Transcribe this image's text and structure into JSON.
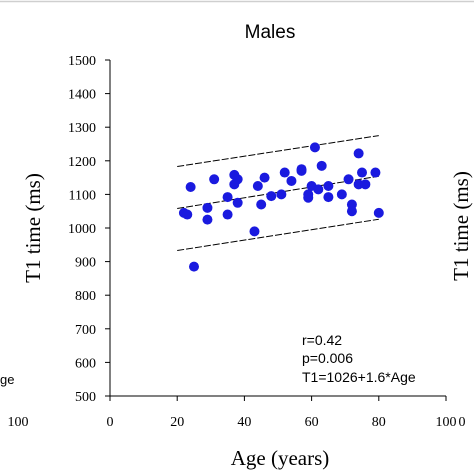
{
  "chart_data": {
    "type": "scatter",
    "title": "Males",
    "xlabel": "Age (years)",
    "ylabel": "T1 time (ms)",
    "xlim": [
      0,
      100
    ],
    "ylim": [
      500,
      1500
    ],
    "x_ticks": [
      "0",
      "20",
      "40",
      "60",
      "80",
      "100"
    ],
    "y_ticks": [
      "500",
      "600",
      "700",
      "800",
      "900",
      "1000",
      "1100",
      "1200",
      "1300",
      "1400",
      "1500"
    ],
    "point_color": "#1a1adf",
    "points": [
      {
        "x": 22,
        "y": 1045
      },
      {
        "x": 23,
        "y": 1040
      },
      {
        "x": 24,
        "y": 1122
      },
      {
        "x": 25,
        "y": 885
      },
      {
        "x": 29,
        "y": 1060
      },
      {
        "x": 29,
        "y": 1025
      },
      {
        "x": 31,
        "y": 1145
      },
      {
        "x": 35,
        "y": 1040
      },
      {
        "x": 35,
        "y": 1092
      },
      {
        "x": 37,
        "y": 1158
      },
      {
        "x": 37,
        "y": 1130
      },
      {
        "x": 38,
        "y": 1145
      },
      {
        "x": 38,
        "y": 1075
      },
      {
        "x": 43,
        "y": 990
      },
      {
        "x": 44,
        "y": 1125
      },
      {
        "x": 45,
        "y": 1070
      },
      {
        "x": 46,
        "y": 1150
      },
      {
        "x": 48,
        "y": 1095
      },
      {
        "x": 51,
        "y": 1100
      },
      {
        "x": 52,
        "y": 1165
      },
      {
        "x": 54,
        "y": 1140
      },
      {
        "x": 57,
        "y": 1175
      },
      {
        "x": 57,
        "y": 1170
      },
      {
        "x": 59,
        "y": 1100
      },
      {
        "x": 59,
        "y": 1090
      },
      {
        "x": 60,
        "y": 1125
      },
      {
        "x": 61,
        "y": 1240
      },
      {
        "x": 62,
        "y": 1115
      },
      {
        "x": 63,
        "y": 1185
      },
      {
        "x": 65,
        "y": 1092
      },
      {
        "x": 65,
        "y": 1125
      },
      {
        "x": 69,
        "y": 1100
      },
      {
        "x": 71,
        "y": 1145
      },
      {
        "x": 72,
        "y": 1070
      },
      {
        "x": 72,
        "y": 1050
      },
      {
        "x": 74,
        "y": 1130
      },
      {
        "x": 74,
        "y": 1222
      },
      {
        "x": 75,
        "y": 1165
      },
      {
        "x": 76,
        "y": 1130
      },
      {
        "x": 79,
        "y": 1165
      },
      {
        "x": 80,
        "y": 1045
      }
    ],
    "fit_line": {
      "x": [
        20,
        80
      ],
      "y": [
        1058,
        1154
      ]
    },
    "confidence_lines": [
      {
        "x": [
          20,
          80
        ],
        "y": [
          1183,
          1275
        ]
      },
      {
        "x": [
          20,
          80
        ],
        "y": [
          933,
          1026
        ]
      }
    ],
    "annotations": [
      "r=0.42",
      "p=0.006",
      "T1=1026+1.6*Age"
    ],
    "grid": false,
    "legend": "none"
  },
  "neighbors": {
    "left_tick": "100",
    "left_fragment": "ge",
    "right_tick": "0",
    "right_ylabel_fragment": "T1 time (ms)"
  }
}
